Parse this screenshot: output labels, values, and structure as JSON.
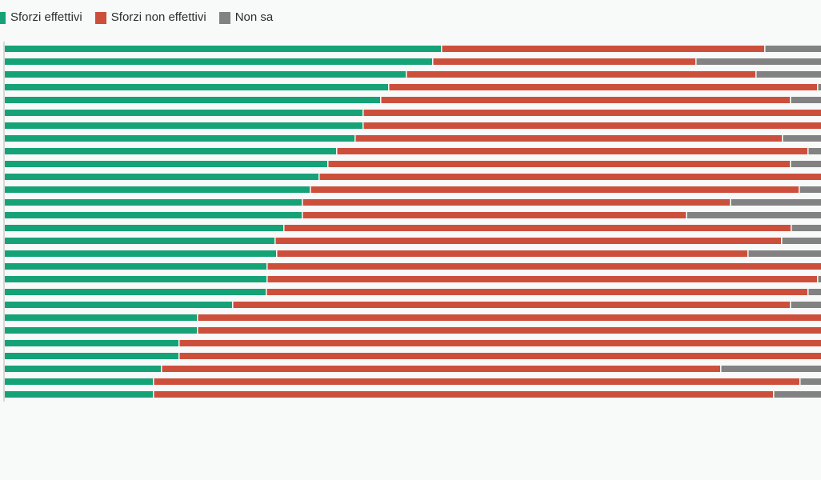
{
  "legend": {
    "items": [
      {
        "key": "effettivi",
        "label": "Sforzi effettivi"
      },
      {
        "key": "non_effettivi",
        "label": "Sforzi non effettivi"
      },
      {
        "key": "non_sa",
        "label": "Non sa"
      }
    ]
  },
  "colors": {
    "effettivi": "#16a277",
    "non_effettivi": "#cc4f3c",
    "non_sa": "#828282",
    "axis_line": "#d8d8d8",
    "background": "#f8f9f9"
  },
  "chart_data": {
    "type": "bar",
    "variant": "horizontal-stacked-100pct",
    "title": "",
    "xlabel": "",
    "ylabel": "",
    "xlim": [
      0,
      100
    ],
    "grid": false,
    "legend_position": "top-left",
    "rows": 28,
    "row_labels_visible": false,
    "series": [
      {
        "name": "Sforzi effettivi",
        "color": "#16a277",
        "values": [
          53.4,
          52.4,
          49.1,
          47.0,
          46.0,
          43.8,
          43.8,
          42.8,
          40.6,
          39.5,
          38.4,
          37.4,
          36.4,
          36.4,
          34.1,
          33.0,
          33.2,
          32.1,
          32.1,
          32.0,
          27.8,
          23.5,
          23.5,
          21.3,
          21.3,
          19.1,
          18.1,
          18.1
        ]
      },
      {
        "name": "Sforzi non effettivi",
        "color": "#cc4f3c",
        "values": [
          39.6,
          32.2,
          42.9,
          52.5,
          50.2,
          56.2,
          56.2,
          52.4,
          57.7,
          56.7,
          61.6,
          59.9,
          52.4,
          47.0,
          62.2,
          62.1,
          57.8,
          67.9,
          67.4,
          66.3,
          68.4,
          76.5,
          76.5,
          78.7,
          78.7,
          68.5,
          79.3,
          76.0
        ]
      },
      {
        "name": "Non sa",
        "color": "#828282",
        "values": [
          7.0,
          15.4,
          8.0,
          0.5,
          3.8,
          0.0,
          0.0,
          4.8,
          1.7,
          3.8,
          0.0,
          2.7,
          11.2,
          16.6,
          3.7,
          4.9,
          9.0,
          0.0,
          0.5,
          1.7,
          3.8,
          0.0,
          0.0,
          0.0,
          0.0,
          12.4,
          2.6,
          5.9
        ]
      }
    ]
  }
}
